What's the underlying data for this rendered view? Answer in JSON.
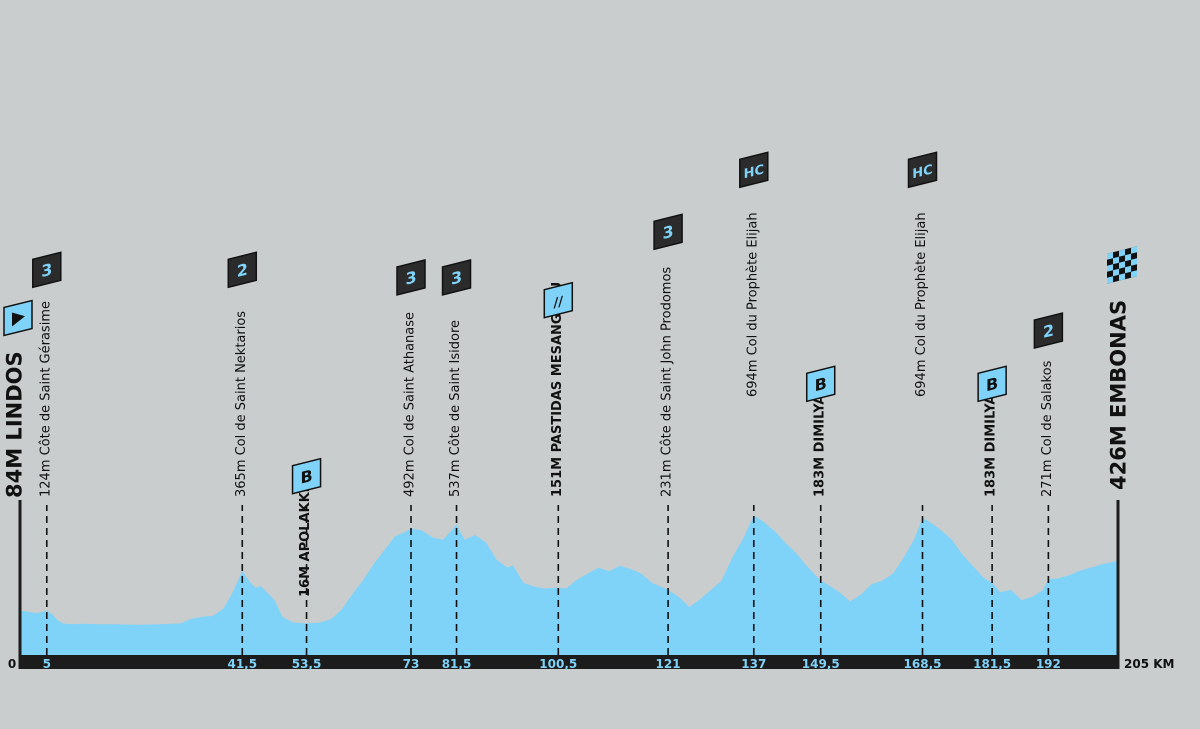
{
  "chart_data": {
    "type": "area",
    "xlim": [
      0,
      205
    ],
    "x_unit": "KM",
    "colors": {
      "profile": "#7fd2f8",
      "background": "#c9cdcd",
      "axis_bar": "#1c1c1c",
      "marker_fill": "#2b2b2b",
      "marker_text": "#7fd2f8"
    },
    "profile": [
      [
        0,
        95
      ],
      [
        1,
        94
      ],
      [
        2,
        92
      ],
      [
        3,
        90
      ],
      [
        4,
        92
      ],
      [
        5,
        95
      ],
      [
        6,
        88
      ],
      [
        7,
        75
      ],
      [
        8,
        68
      ],
      [
        10,
        66
      ],
      [
        12,
        67
      ],
      [
        15,
        66
      ],
      [
        18,
        66
      ],
      [
        22,
        65
      ],
      [
        26,
        66
      ],
      [
        30,
        68
      ],
      [
        32,
        78
      ],
      [
        34,
        82
      ],
      [
        36,
        84
      ],
      [
        38,
        100
      ],
      [
        39.5,
        130
      ],
      [
        41.5,
        180
      ],
      [
        43,
        156
      ],
      [
        44,
        145
      ],
      [
        45,
        148
      ],
      [
        46.5,
        130
      ],
      [
        47.5,
        118
      ],
      [
        49,
        82
      ],
      [
        51,
        70
      ],
      [
        53.5,
        68
      ],
      [
        56,
        70
      ],
      [
        58,
        77
      ],
      [
        60,
        97
      ],
      [
        62,
        130
      ],
      [
        64,
        160
      ],
      [
        66,
        195
      ],
      [
        68,
        225
      ],
      [
        70,
        255
      ],
      [
        72,
        265
      ],
      [
        73,
        272
      ],
      [
        75,
        268
      ],
      [
        77,
        253
      ],
      [
        79,
        248
      ],
      [
        81.5,
        280
      ],
      [
        83,
        248
      ],
      [
        85,
        258
      ],
      [
        87,
        242
      ],
      [
        89,
        205
      ],
      [
        91,
        188
      ],
      [
        92,
        193
      ],
      [
        94,
        155
      ],
      [
        96,
        147
      ],
      [
        98,
        143
      ],
      [
        100.5,
        145
      ],
      [
        102,
        143
      ],
      [
        104,
        162
      ],
      [
        106,
        175
      ],
      [
        108,
        188
      ],
      [
        110,
        180
      ],
      [
        112,
        192
      ],
      [
        114,
        185
      ],
      [
        116,
        175
      ],
      [
        118,
        155
      ],
      [
        121,
        140
      ],
      [
        123,
        125
      ],
      [
        125,
        103
      ],
      [
        127,
        120
      ],
      [
        128,
        130
      ],
      [
        131,
        160
      ],
      [
        133,
        210
      ],
      [
        135,
        250
      ],
      [
        137,
        300
      ],
      [
        139,
        285
      ],
      [
        141,
        265
      ],
      [
        143,
        240
      ],
      [
        145,
        218
      ],
      [
        147,
        190
      ],
      [
        149.5,
        160
      ],
      [
        151,
        150
      ],
      [
        153,
        135
      ],
      [
        155,
        115
      ],
      [
        157,
        130
      ],
      [
        159,
        152
      ],
      [
        161,
        160
      ],
      [
        163,
        175
      ],
      [
        165,
        210
      ],
      [
        167,
        250
      ],
      [
        168.5,
        295
      ],
      [
        170,
        285
      ],
      [
        172,
        268
      ],
      [
        174,
        248
      ],
      [
        176,
        215
      ],
      [
        178,
        190
      ],
      [
        180,
        165
      ],
      [
        181.5,
        155
      ],
      [
        183,
        135
      ],
      [
        185,
        140
      ],
      [
        187,
        118
      ],
      [
        189,
        125
      ],
      [
        191,
        140
      ],
      [
        192,
        163
      ],
      [
        194,
        165
      ],
      [
        196,
        172
      ],
      [
        198,
        182
      ],
      [
        200,
        188
      ],
      [
        202,
        195
      ],
      [
        204,
        200
      ],
      [
        205,
        203
      ]
    ],
    "x_ticks": [
      "0",
      "5",
      "41,5",
      "53,5",
      "73",
      "81,5",
      "100,5",
      "121",
      "137",
      "149,5",
      "168,5",
      "181,5",
      "192",
      "205 KM"
    ],
    "start": {
      "km": 0,
      "label": "84M LINDOS",
      "icon": "start-flag"
    },
    "finish": {
      "km": 205,
      "label": "426M EMBONAS",
      "icon": "checkered-flag"
    },
    "waypoints": [
      {
        "km": 5,
        "label": "124m Côte de Saint Gérasime",
        "badge": "3",
        "kind": "climb"
      },
      {
        "km": 41.5,
        "label": "365m Col de Saint Nektarios",
        "badge": "2",
        "kind": "climb"
      },
      {
        "km": 53.5,
        "label": "16M APOLAKKIA",
        "badge": "B",
        "kind": "bonus"
      },
      {
        "km": 73,
        "label": "492m Col de Saint Athanase",
        "badge": "3",
        "kind": "climb"
      },
      {
        "km": 81.5,
        "label": "537m Côte de Saint Isidore",
        "badge": "3",
        "kind": "climb"
      },
      {
        "km": 100.5,
        "label": "151M PASTIDAS MESANGROU",
        "badge": "//",
        "kind": "sprint"
      },
      {
        "km": 121,
        "label": "231m Côte de Saint John Prodomos",
        "badge": "3",
        "kind": "climb"
      },
      {
        "km": 137,
        "label": "694m Col du Prophète Elijah",
        "badge": "HC",
        "kind": "climb"
      },
      {
        "km": 149.5,
        "label": "183M DIMILYA",
        "badge": "B",
        "kind": "bonus"
      },
      {
        "km": 168.5,
        "label": "694m Col du Prophète Elijah",
        "badge": "HC",
        "kind": "climb"
      },
      {
        "km": 181.5,
        "label": "183M DIMILYA",
        "badge": "B",
        "kind": "bonus"
      },
      {
        "km": 192,
        "label": "271m Col de Salakos",
        "badge": "2",
        "kind": "climb"
      }
    ]
  }
}
